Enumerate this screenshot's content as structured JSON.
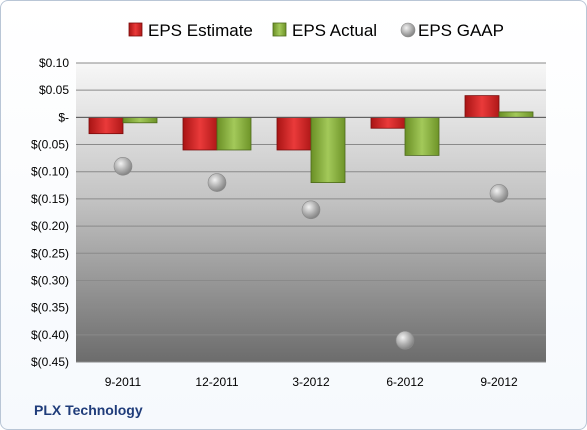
{
  "company": "PLX Technology",
  "chart_data": {
    "type": "bar",
    "categories": [
      "9-2011",
      "12-2011",
      "3-2012",
      "6-2012",
      "9-2012"
    ],
    "series": [
      {
        "name": "EPS Estimate",
        "kind": "bar",
        "color": "#d42626",
        "values": [
          -0.03,
          -0.06,
          -0.06,
          -0.02,
          0.04
        ]
      },
      {
        "name": "EPS Actual",
        "kind": "bar",
        "color": "#8cb53c",
        "values": [
          -0.01,
          -0.06,
          -0.12,
          -0.07,
          0.01
        ]
      },
      {
        "name": "EPS GAAP",
        "kind": "scatter",
        "color": "#a8a8a8",
        "values": [
          -0.09,
          -0.12,
          -0.17,
          -0.41,
          -0.14
        ]
      }
    ],
    "yticks": [
      {
        "value": 0.1,
        "label": "$0.10"
      },
      {
        "value": 0.05,
        "label": "$0.05"
      },
      {
        "value": 0.0,
        "label": "$-"
      },
      {
        "value": -0.05,
        "label": "$(0.05)"
      },
      {
        "value": -0.1,
        "label": "$(0.10)"
      },
      {
        "value": -0.15,
        "label": "$(0.15)"
      },
      {
        "value": -0.2,
        "label": "$(0.20)"
      },
      {
        "value": -0.25,
        "label": "$(0.25)"
      },
      {
        "value": -0.3,
        "label": "$(0.30)"
      },
      {
        "value": -0.35,
        "label": "$(0.35)"
      },
      {
        "value": -0.4,
        "label": "$(0.40)"
      },
      {
        "value": -0.45,
        "label": "$(0.45)"
      }
    ],
    "ylim": [
      -0.45,
      0.1
    ],
    "grid": true,
    "legend": "top",
    "plot_background": "gradient light-to-dark gray"
  }
}
